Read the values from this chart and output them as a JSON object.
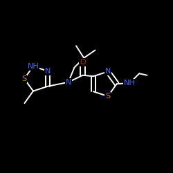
{
  "background_color": "#000000",
  "bond_color": "#ffffff",
  "bond_width": 1.4,
  "figsize": [
    2.5,
    2.5
  ],
  "dpi": 100,
  "atom_colors": {
    "N": "#4466ff",
    "S": "#cc8800",
    "O": "#cc2200",
    "C": "#ffffff",
    "H": "#ffffff"
  }
}
